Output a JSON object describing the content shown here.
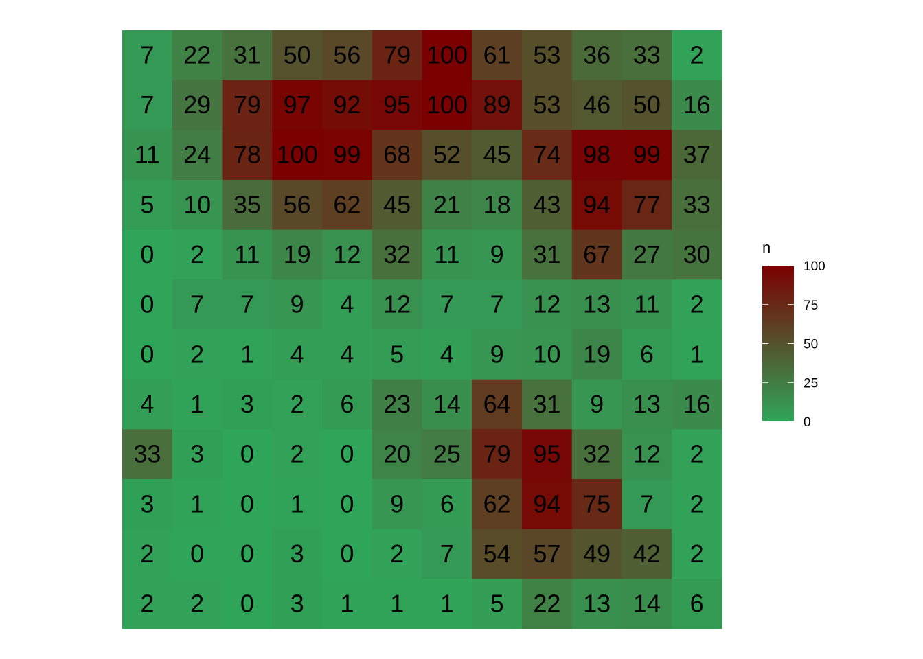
{
  "chart_data": {
    "type": "heatmap",
    "rows": [
      [
        7,
        22,
        31,
        50,
        56,
        79,
        100,
        61,
        53,
        36,
        33,
        2
      ],
      [
        7,
        29,
        79,
        97,
        92,
        95,
        100,
        89,
        53,
        46,
        50,
        16
      ],
      [
        11,
        24,
        78,
        100,
        99,
        68,
        52,
        45,
        74,
        98,
        99,
        37
      ],
      [
        5,
        10,
        35,
        56,
        62,
        45,
        21,
        18,
        43,
        94,
        77,
        33
      ],
      [
        0,
        2,
        11,
        19,
        12,
        32,
        11,
        9,
        31,
        67,
        27,
        30
      ],
      [
        0,
        7,
        7,
        9,
        4,
        12,
        7,
        7,
        12,
        13,
        11,
        2
      ],
      [
        0,
        2,
        1,
        4,
        4,
        5,
        4,
        9,
        10,
        19,
        6,
        1
      ],
      [
        4,
        1,
        3,
        2,
        6,
        23,
        14,
        64,
        31,
        9,
        13,
        16
      ],
      [
        33,
        3,
        0,
        2,
        0,
        20,
        25,
        79,
        95,
        32,
        12,
        2
      ],
      [
        3,
        1,
        0,
        1,
        0,
        9,
        6,
        62,
        94,
        75,
        7,
        2
      ],
      [
        2,
        0,
        0,
        3,
        0,
        2,
        7,
        54,
        57,
        49,
        42,
        2
      ],
      [
        2,
        2,
        0,
        3,
        1,
        1,
        1,
        5,
        22,
        13,
        14,
        6
      ]
    ],
    "value_range": [
      0,
      100
    ],
    "color_low": "#2fa55a",
    "color_high": "#7b0000",
    "cell_labels": true,
    "legend": {
      "title": "n",
      "ticks": [
        0,
        25,
        50,
        75,
        100
      ],
      "tick_labels": [
        "0",
        "25",
        "50",
        "75",
        "100"
      ],
      "placement": "right"
    },
    "axes": "none",
    "grid": false
  }
}
